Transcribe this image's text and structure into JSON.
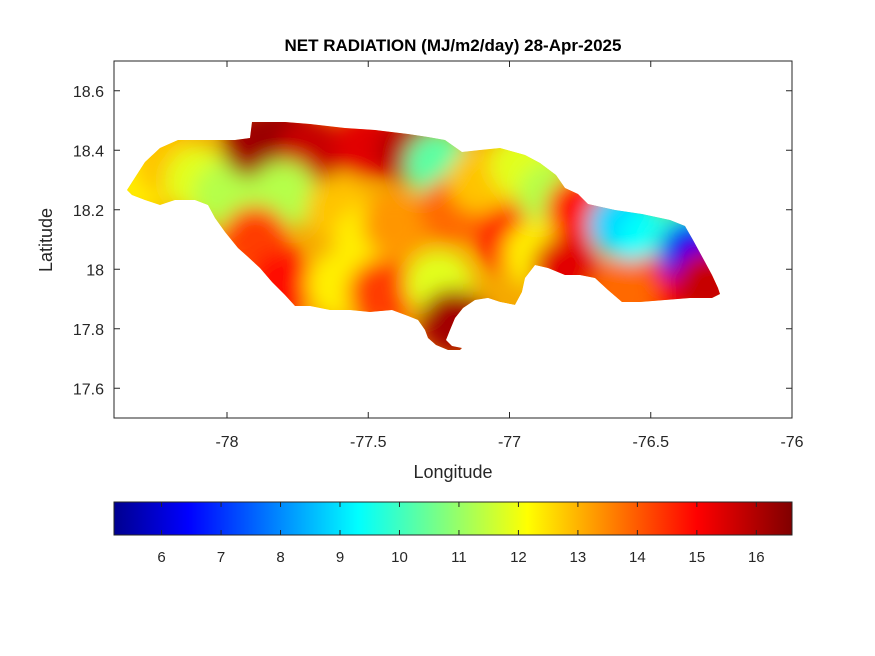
{
  "chart_data": {
    "type": "heatmap",
    "title": "NET RADIATION (MJ/m2/day) 28-Apr-2025",
    "xlabel": "Longitude",
    "ylabel": "Latitude",
    "xlim": [
      -78.4,
      -76
    ],
    "ylim": [
      17.5,
      18.7
    ],
    "xticks": [
      -78,
      -77.5,
      -77,
      -76.5,
      -76
    ],
    "yticks": [
      17.6,
      17.8,
      18,
      18.2,
      18.4,
      18.6
    ],
    "colorbar": {
      "colormap": "jet",
      "range": [
        5.2,
        16.6
      ],
      "ticks": [
        6,
        7,
        8,
        9,
        10,
        11,
        12,
        13,
        14,
        15,
        16
      ],
      "location": "bottom"
    },
    "grid": false,
    "field_samples": [
      {
        "lon": -78.3,
        "lat": 18.3,
        "value": 12.5
      },
      {
        "lon": -78.2,
        "lat": 18.35,
        "value": 13.0
      },
      {
        "lon": -78.1,
        "lat": 18.3,
        "value": 12.0
      },
      {
        "lon": -78.0,
        "lat": 18.25,
        "value": 11.5
      },
      {
        "lon": -77.9,
        "lat": 18.42,
        "value": 16.2
      },
      {
        "lon": -77.8,
        "lat": 18.45,
        "value": 16.3
      },
      {
        "lon": -77.7,
        "lat": 18.4,
        "value": 15.8
      },
      {
        "lon": -77.5,
        "lat": 18.42,
        "value": 15.5
      },
      {
        "lon": -77.35,
        "lat": 18.4,
        "value": 16.0
      },
      {
        "lon": -77.8,
        "lat": 18.25,
        "value": 11.5
      },
      {
        "lon": -77.6,
        "lat": 18.2,
        "value": 13.0
      },
      {
        "lon": -77.5,
        "lat": 18.1,
        "value": 12.5
      },
      {
        "lon": -77.4,
        "lat": 18.15,
        "value": 13.5
      },
      {
        "lon": -77.9,
        "lat": 18.1,
        "value": 14.5
      },
      {
        "lon": -77.8,
        "lat": 17.95,
        "value": 15.0
      },
      {
        "lon": -77.6,
        "lat": 17.95,
        "value": 12.5
      },
      {
        "lon": -77.45,
        "lat": 17.92,
        "value": 14.5
      },
      {
        "lon": -77.25,
        "lat": 17.95,
        "value": 12.0
      },
      {
        "lon": -77.2,
        "lat": 17.82,
        "value": 16.2
      },
      {
        "lon": -77.25,
        "lat": 18.35,
        "value": 10.5
      },
      {
        "lon": -77.2,
        "lat": 18.2,
        "value": 14.0
      },
      {
        "lon": -77.1,
        "lat": 18.3,
        "value": 13.0
      },
      {
        "lon": -77.0,
        "lat": 18.1,
        "value": 14.8
      },
      {
        "lon": -76.95,
        "lat": 18.35,
        "value": 12.0
      },
      {
        "lon": -76.85,
        "lat": 18.25,
        "value": 11.5
      },
      {
        "lon": -76.9,
        "lat": 18.05,
        "value": 12.5
      },
      {
        "lon": -76.75,
        "lat": 18.2,
        "value": 15.0
      },
      {
        "lon": -76.8,
        "lat": 18.0,
        "value": 15.5
      },
      {
        "lon": -76.6,
        "lat": 18.15,
        "value": 9.0
      },
      {
        "lon": -76.5,
        "lat": 18.1,
        "value": 9.5
      },
      {
        "lon": -76.45,
        "lat": 17.95,
        "value": 15.2
      },
      {
        "lon": -76.38,
        "lat": 18.1,
        "value": 10.0
      },
      {
        "lon": -76.35,
        "lat": 18.05,
        "value": 6.5
      },
      {
        "lon": -76.3,
        "lat": 17.95,
        "value": 15.8
      },
      {
        "lon": -76.6,
        "lat": 17.92,
        "value": 14.0
      }
    ]
  }
}
